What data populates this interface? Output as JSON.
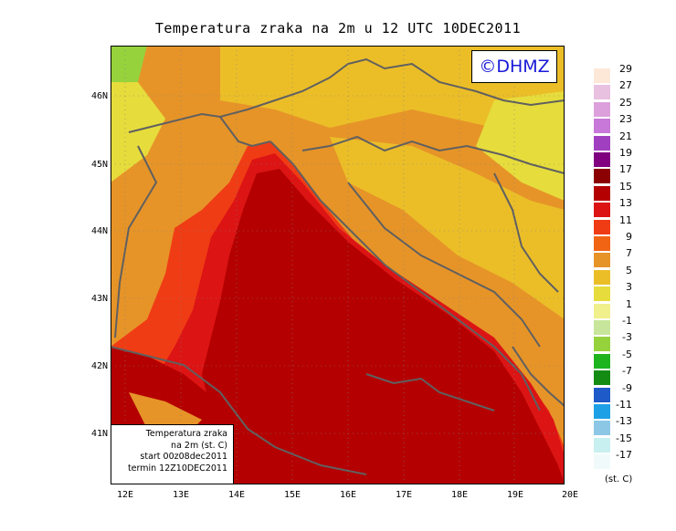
{
  "title": "Temperatura zraka na 2m u 12 UTC 10DEC2011",
  "logo_text": "©DHMZ",
  "info_box": {
    "line1": "Temperatura zraka",
    "line2": "na 2m (st. C)",
    "line3": "start 00z08dec2011",
    "line4": "termin 12Z10DEC2011"
  },
  "lat_labels": [
    "46N",
    "45N",
    "44N",
    "43N",
    "42N",
    "41N"
  ],
  "lon_labels": [
    "12E",
    "13E",
    "14E",
    "15E",
    "16E",
    "17E",
    "18E",
    "19E",
    "20E"
  ],
  "legend": {
    "unit": "(st. C)",
    "labels": [
      "29",
      "27",
      "25",
      "23",
      "21",
      "19",
      "17",
      "15",
      "13",
      "11",
      "9",
      "7",
      "5",
      "3",
      "1",
      "-1",
      "-3",
      "-5",
      "-7",
      "-9",
      "-11",
      "-13",
      "-15",
      "-17"
    ],
    "colors": [
      "#fde8d8",
      "#e8c0e0",
      "#dca0dc",
      "#c878d8",
      "#a040c0",
      "#800080",
      "#8b0000",
      "#b40000",
      "#dc1414",
      "#f03c14",
      "#f06414",
      "#e69428",
      "#ebbe28",
      "#e6dc3c",
      "#f0f08c",
      "#c8e69b",
      "#96d23c",
      "#1eb41e",
      "#148c14",
      "#1e5ac8",
      "#1ea0e6",
      "#8cc8e6",
      "#c8f0f0",
      "#f0fafa"
    ]
  },
  "colors": {
    "sea_warm": "#b40000",
    "sea_mid": "#dc1414",
    "coast": "#f03c14",
    "land_mid": "#e69428",
    "land_cool": "#ebbe28",
    "land_cold": "#e6dc3c",
    "border": "#606060",
    "logo": "#1818d8"
  }
}
